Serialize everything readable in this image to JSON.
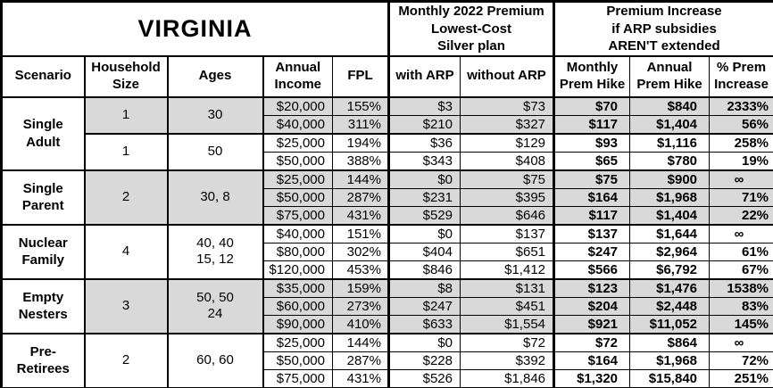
{
  "title": "VIRGINIA",
  "colors": {
    "shaded_row_bg": "#d9d9d9",
    "border": "#000000",
    "background": "#ffffff"
  },
  "header": {
    "premium_group": "Monthly 2022 Premium\nLowest-Cost\nSilver plan",
    "increase_group": "Premium Increase\nif ARP subsidies\nAREN'T extended",
    "columns": [
      "Scenario",
      "Household\nSize",
      "Ages",
      "Annual\nIncome",
      "FPL",
      "with ARP",
      "without ARP",
      "Monthly\nPrem Hike",
      "Annual\nPrem Hike",
      "% Prem\nIncrease"
    ]
  },
  "groups": [
    {
      "scenario": "Single\nAdult",
      "bands": [
        {
          "household_size": "1",
          "ages": "30",
          "shaded": true,
          "rows": [
            {
              "income": "$20,000",
              "fpl": "155%",
              "with_arp": "$3",
              "without_arp": "$73",
              "monthly_hike": "$70",
              "annual_hike": "$840",
              "pct_increase": "2333%"
            },
            {
              "income": "$40,000",
              "fpl": "311%",
              "with_arp": "$210",
              "without_arp": "$327",
              "monthly_hike": "$117",
              "annual_hike": "$1,404",
              "pct_increase": "56%"
            }
          ]
        },
        {
          "household_size": "1",
          "ages": "50",
          "shaded": false,
          "rows": [
            {
              "income": "$25,000",
              "fpl": "194%",
              "with_arp": "$36",
              "without_arp": "$129",
              "monthly_hike": "$93",
              "annual_hike": "$1,116",
              "pct_increase": "258%"
            },
            {
              "income": "$50,000",
              "fpl": "388%",
              "with_arp": "$343",
              "without_arp": "$408",
              "monthly_hike": "$65",
              "annual_hike": "$780",
              "pct_increase": "19%"
            }
          ]
        }
      ]
    },
    {
      "scenario": "Single\nParent",
      "bands": [
        {
          "household_size": "2",
          "ages": "30, 8",
          "shaded": true,
          "rows": [
            {
              "income": "$25,000",
              "fpl": "144%",
              "with_arp": "$0",
              "without_arp": "$75",
              "monthly_hike": "$75",
              "annual_hike": "$900",
              "pct_increase": "∞"
            },
            {
              "income": "$50,000",
              "fpl": "287%",
              "with_arp": "$231",
              "without_arp": "$395",
              "monthly_hike": "$164",
              "annual_hike": "$1,968",
              "pct_increase": "71%"
            },
            {
              "income": "$75,000",
              "fpl": "431%",
              "with_arp": "$529",
              "without_arp": "$646",
              "monthly_hike": "$117",
              "annual_hike": "$1,404",
              "pct_increase": "22%"
            }
          ]
        }
      ]
    },
    {
      "scenario": "Nuclear\nFamily",
      "bands": [
        {
          "household_size": "4",
          "ages": "40, 40\n15, 12",
          "shaded": false,
          "rows": [
            {
              "income": "$40,000",
              "fpl": "151%",
              "with_arp": "$0",
              "without_arp": "$137",
              "monthly_hike": "$137",
              "annual_hike": "$1,644",
              "pct_increase": "∞"
            },
            {
              "income": "$80,000",
              "fpl": "302%",
              "with_arp": "$404",
              "without_arp": "$651",
              "monthly_hike": "$247",
              "annual_hike": "$2,964",
              "pct_increase": "61%"
            },
            {
              "income": "$120,000",
              "fpl": "453%",
              "with_arp": "$846",
              "without_arp": "$1,412",
              "monthly_hike": "$566",
              "annual_hike": "$6,792",
              "pct_increase": "67%"
            }
          ]
        }
      ]
    },
    {
      "scenario": "Empty\nNesters",
      "bands": [
        {
          "household_size": "3",
          "ages": "50, 50\n24",
          "shaded": true,
          "rows": [
            {
              "income": "$35,000",
              "fpl": "159%",
              "with_arp": "$8",
              "without_arp": "$131",
              "monthly_hike": "$123",
              "annual_hike": "$1,476",
              "pct_increase": "1538%"
            },
            {
              "income": "$60,000",
              "fpl": "273%",
              "with_arp": "$247",
              "without_arp": "$451",
              "monthly_hike": "$204",
              "annual_hike": "$2,448",
              "pct_increase": "83%"
            },
            {
              "income": "$90,000",
              "fpl": "410%",
              "with_arp": "$633",
              "without_arp": "$1,554",
              "monthly_hike": "$921",
              "annual_hike": "$11,052",
              "pct_increase": "145%"
            }
          ]
        }
      ]
    },
    {
      "scenario": "Pre-\nRetirees",
      "bands": [
        {
          "household_size": "2",
          "ages": "60, 60",
          "shaded": false,
          "rows": [
            {
              "income": "$25,000",
              "fpl": "144%",
              "with_arp": "$0",
              "without_arp": "$72",
              "monthly_hike": "$72",
              "annual_hike": "$864",
              "pct_increase": "∞"
            },
            {
              "income": "$50,000",
              "fpl": "287%",
              "with_arp": "$228",
              "without_arp": "$392",
              "monthly_hike": "$164",
              "annual_hike": "$1,968",
              "pct_increase": "72%"
            },
            {
              "income": "$75,000",
              "fpl": "431%",
              "with_arp": "$526",
              "without_arp": "$1,846",
              "monthly_hike": "$1,320",
              "annual_hike": "$15,840",
              "pct_increase": "251%"
            }
          ]
        }
      ]
    }
  ]
}
